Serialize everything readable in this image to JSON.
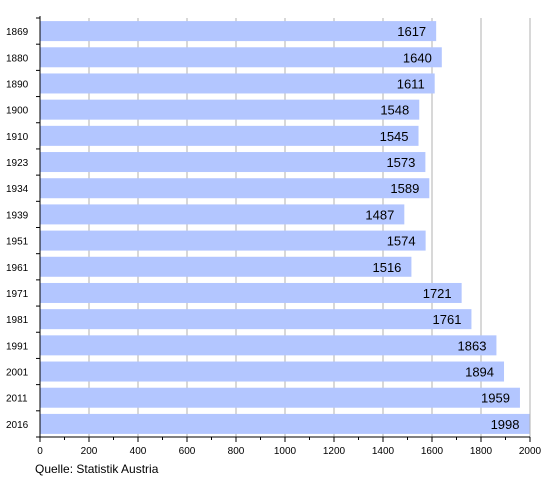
{
  "chart_data": {
    "type": "bar",
    "orientation": "horizontal",
    "categories": [
      "1869",
      "1880",
      "1890",
      "1900",
      "1910",
      "1923",
      "1934",
      "1939",
      "1951",
      "1961",
      "1971",
      "1981",
      "1991",
      "2001",
      "2011",
      "2016"
    ],
    "values": [
      1617,
      1640,
      1611,
      1548,
      1545,
      1573,
      1589,
      1487,
      1574,
      1516,
      1721,
      1761,
      1863,
      1894,
      1959,
      1998
    ],
    "data_labels": [
      "1617",
      "1640",
      "1611",
      "1548",
      "1545",
      "1573",
      "1589",
      "1487",
      "1574",
      "1516",
      "1721",
      "1761",
      "1863",
      "1894",
      "1959",
      "1998"
    ],
    "xlim": [
      0,
      2000
    ],
    "x_ticks": [
      "0",
      "200",
      "400",
      "600",
      "800",
      "1000",
      "1200",
      "1400",
      "1600",
      "1800",
      "2000"
    ],
    "grid": "vertical",
    "bar_color": "#b3c6ff",
    "title": "",
    "xlabel": "",
    "ylabel": ""
  },
  "source": "Quelle: Statistik Austria"
}
